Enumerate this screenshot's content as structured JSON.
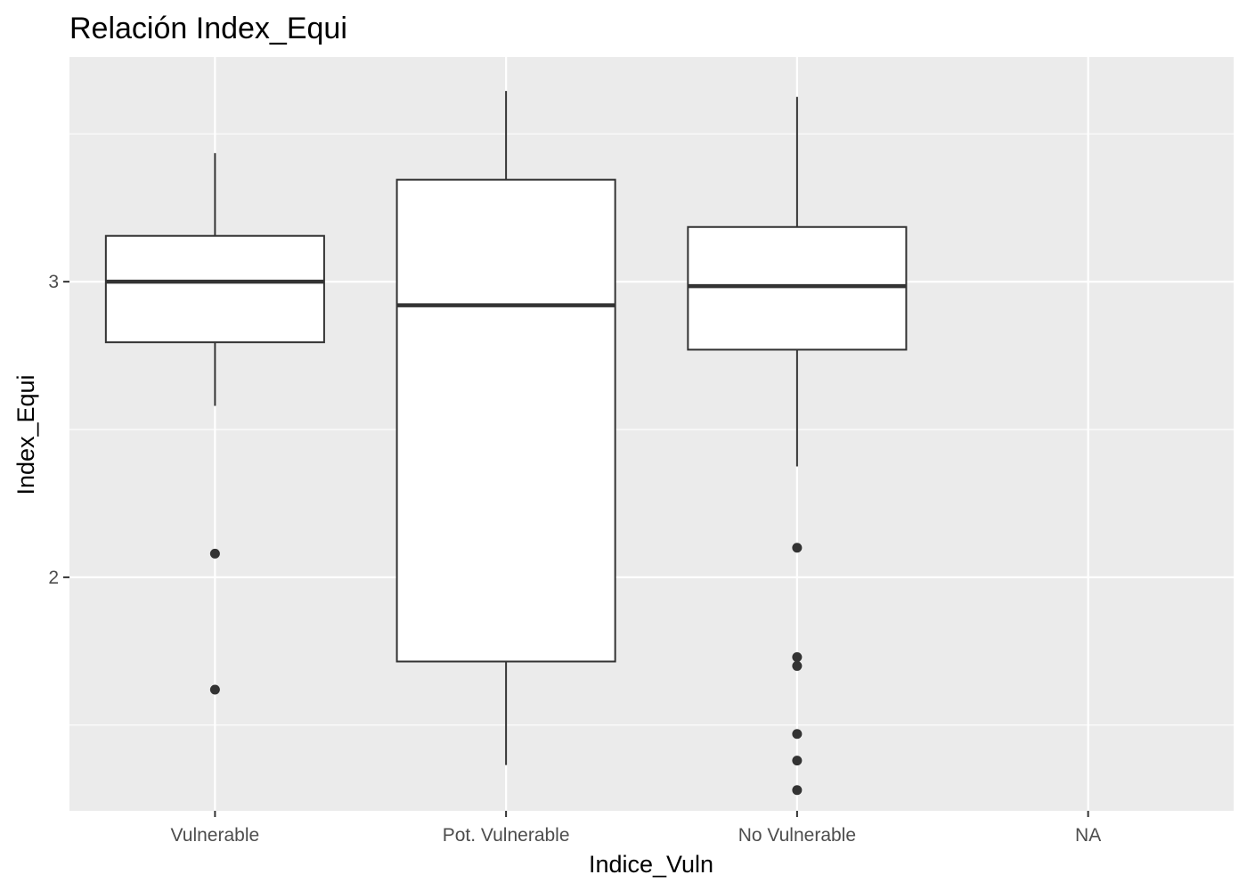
{
  "chart_data": {
    "type": "boxplot",
    "title": "Relación  Index_Equi",
    "xlabel": "Indice_Vuln",
    "ylabel": "Index_Equi",
    "categories": [
      "Vulnerable",
      "Pot. Vulnerable",
      "No Vulnerable",
      "NA"
    ],
    "ylim": [
      1.21,
      3.76
    ],
    "yticks": [
      2,
      3
    ],
    "yticks_minor": [
      1.5,
      2.5,
      3.5
    ],
    "grid": true,
    "boxes": [
      {
        "category": "Vulnerable",
        "whisker_low": 2.58,
        "q1": 2.795,
        "median": 3.0,
        "q3": 3.155,
        "whisker_high": 3.435,
        "outliers": [
          2.08,
          1.62
        ]
      },
      {
        "category": "Pot. Vulnerable",
        "whisker_low": 1.365,
        "q1": 1.715,
        "median": 2.92,
        "q3": 3.345,
        "whisker_high": 3.645,
        "outliers": []
      },
      {
        "category": "No Vulnerable",
        "whisker_low": 2.375,
        "q1": 2.77,
        "median": 2.985,
        "q3": 3.185,
        "whisker_high": 3.625,
        "outliers": [
          2.1,
          1.73,
          1.7,
          1.47,
          1.38,
          1.28
        ]
      },
      {
        "category": "NA",
        "outliers": []
      }
    ]
  }
}
